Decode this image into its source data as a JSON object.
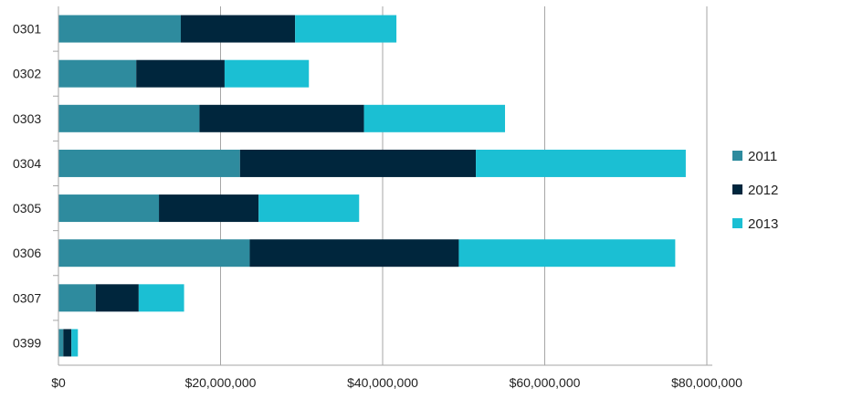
{
  "chart_data": {
    "type": "bar",
    "orientation": "horizontal",
    "stacked": true,
    "categories": [
      "0301",
      "0302",
      "0303",
      "0304",
      "0305",
      "0306",
      "0307",
      "0399"
    ],
    "series": [
      {
        "name": "2011",
        "color": "#2e8b9e",
        "values": [
          15100000,
          9600000,
          17400000,
          22400000,
          12400000,
          23600000,
          4600000,
          600000
        ]
      },
      {
        "name": "2012",
        "color": "#00263d",
        "values": [
          14100000,
          10900000,
          20300000,
          29100000,
          12300000,
          25800000,
          5300000,
          1000000
        ]
      },
      {
        "name": "2013",
        "color": "#1bbfd3",
        "values": [
          12500000,
          10400000,
          17400000,
          25900000,
          12400000,
          26700000,
          5600000,
          800000
        ]
      }
    ],
    "x_ticks": [
      "$0",
      "$20,000,000",
      "$40,000,000",
      "$60,000,000",
      "$80,000,000"
    ],
    "xlim": [
      0,
      80000000
    ],
    "grid": "vertical",
    "legend_position": "right",
    "title": "",
    "xlabel": "",
    "ylabel": ""
  }
}
